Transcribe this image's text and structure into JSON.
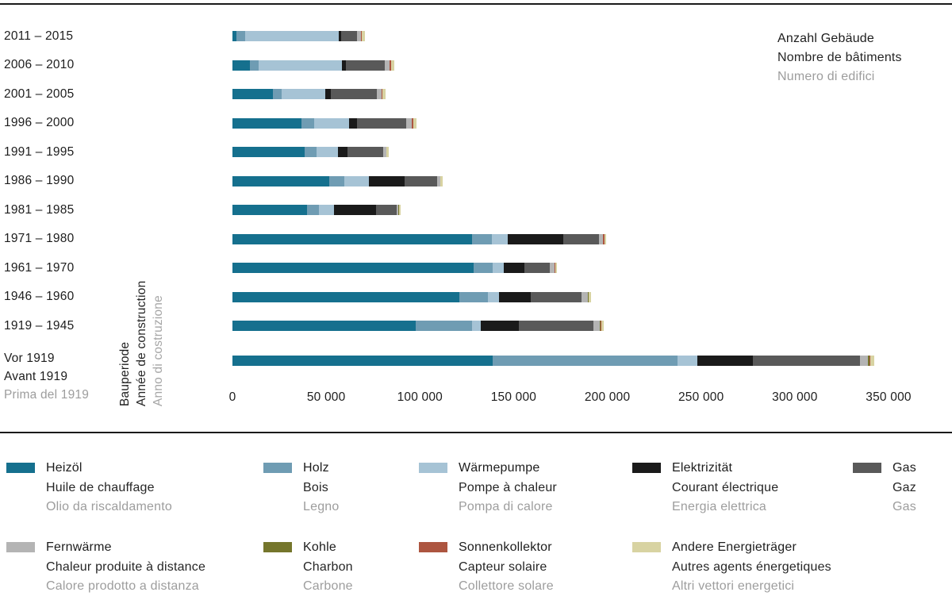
{
  "value_axis_label": {
    "de": "Anzahl Gebäude",
    "fr": "Nombre de bâtiments",
    "it": "Numero di edifici"
  },
  "category_axis_label": {
    "de": "Bauperiode",
    "fr": "Année de construction",
    "it": "Anno di costruzione"
  },
  "chart_data": {
    "type": "bar",
    "orientation": "horizontal",
    "stacked": true,
    "grid": false,
    "legend_position": "bottom",
    "categories": [
      [
        "2011 – 2015"
      ],
      [
        "2006 – 2010"
      ],
      [
        "2001 – 2005"
      ],
      [
        "1996 – 2000"
      ],
      [
        "1991 – 1995"
      ],
      [
        "1986 – 1990"
      ],
      [
        "1981 – 1985"
      ],
      [
        "1971 – 1980"
      ],
      [
        "1961 – 1970"
      ],
      [
        "1946 – 1960"
      ],
      [
        "1919 – 1945"
      ],
      [
        "Vor 1919",
        "Avant 1919",
        "Prima del 1919"
      ]
    ],
    "x_ticks": [
      "0",
      "50 000",
      "100 000",
      "150 000",
      "200 000",
      "250 000",
      "300 000",
      "350 000"
    ],
    "xlim": [
      0,
      350000
    ],
    "series": [
      {
        "name": "Heizöl",
        "color": "#15708e",
        "values": [
          2300,
          9300,
          21600,
          36800,
          38500,
          51600,
          39800,
          127700,
          128600,
          121000,
          97700,
          139000
        ]
      },
      {
        "name": "Holz",
        "color": "#6f9cb3",
        "values": [
          4500,
          4700,
          4700,
          6800,
          6400,
          8000,
          6400,
          10600,
          10200,
          15200,
          30000,
          98600
        ]
      },
      {
        "name": "Wärmepumpe",
        "color": "#a6c3d5",
        "values": [
          50000,
          44400,
          23300,
          18600,
          11400,
          13100,
          8000,
          8500,
          5900,
          5900,
          4700,
          10600
        ]
      },
      {
        "name": "Elektrizität",
        "color": "#1a1a1a",
        "values": [
          1000,
          2000,
          3100,
          4200,
          5100,
          19000,
          22400,
          29600,
          11000,
          16900,
          20300,
          29600
        ]
      },
      {
        "name": "Gas",
        "color": "#595959",
        "values": [
          8500,
          20900,
          24300,
          26200,
          19000,
          17600,
          11000,
          19000,
          13500,
          27100,
          39800,
          57100
        ]
      },
      {
        "name": "Fernwärme",
        "color": "#b4b4b4",
        "values": [
          2100,
          2500,
          2500,
          3000,
          1600,
          1400,
          1000,
          2100,
          2500,
          3400,
          3400,
          4200
        ]
      },
      {
        "name": "Kohle",
        "color": "#75762c",
        "values": [
          0,
          0,
          0,
          0,
          0,
          100,
          100,
          300,
          300,
          500,
          700,
          900
        ]
      },
      {
        "name": "Sonnenkollektor",
        "color": "#ad5540",
        "values": [
          700,
          850,
          500,
          700,
          300,
          300,
          300,
          500,
          200,
          200,
          200,
          300
        ]
      },
      {
        "name": "Andere Energieträger",
        "color": "#d8d3a2",
        "values": [
          1600,
          1700,
          1700,
          1800,
          1000,
          1100,
          800,
          1200,
          1100,
          1300,
          1300,
          1900
        ]
      }
    ]
  },
  "legend": {
    "rows": [
      [
        {
          "de": "Heizöl",
          "fr": "Huile de chauffage",
          "it": "Olio da riscaldamento",
          "color": "#15708e"
        },
        {
          "de": "Holz",
          "fr": "Bois",
          "it": "Legno",
          "color": "#6f9cb3"
        },
        {
          "de": "Wärmepumpe",
          "fr": "Pompe à chaleur",
          "it": "Pompa di calore",
          "color": "#a6c3d5"
        },
        {
          "de": "Elektrizität",
          "fr": "Courant électrique",
          "it": "Energia elettrica",
          "color": "#1a1a1a"
        },
        {
          "de": "Gas",
          "fr": "Gaz",
          "it": "Gas",
          "color": "#595959"
        }
      ],
      [
        {
          "de": "Fernwärme",
          "fr": "Chaleur produite à distance",
          "it": "Calore prodotto a distanza",
          "color": "#b4b4b4"
        },
        {
          "de": "Kohle",
          "fr": "Charbon",
          "it": "Carbone",
          "color": "#75762c"
        },
        {
          "de": "Sonnenkollektor",
          "fr": "Capteur solaire",
          "it": "Collettore solare",
          "color": "#ad5540"
        },
        {
          "de": "Andere Energieträger",
          "fr": "Autres agents énergetiques",
          "it": "Altri vettori energetici",
          "color": "#d8d3a2"
        }
      ]
    ]
  }
}
